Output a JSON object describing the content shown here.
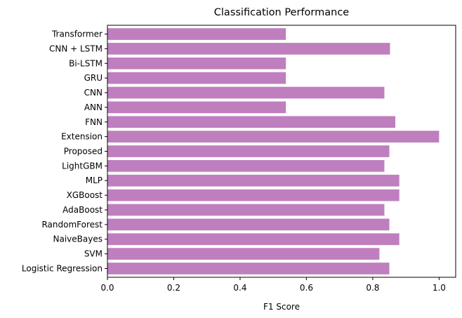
{
  "chart_data": {
    "type": "bar",
    "orientation": "horizontal",
    "title": "Classification Performance",
    "xlabel": "F1 Score",
    "ylabel": "",
    "xlim": [
      0,
      1.05
    ],
    "xticks": [
      0.0,
      0.2,
      0.4,
      0.6,
      0.8,
      1.0
    ],
    "xtick_labels": [
      "0.0",
      "0.2",
      "0.4",
      "0.6",
      "0.8",
      "1.0"
    ],
    "categories": [
      "Logistic Regression",
      "SVM",
      "NaiveBayes",
      "RandomForest",
      "AdaBoost",
      "XGBoost",
      "MLP",
      "LightGBM",
      "Proposed",
      "Extension",
      "FNN",
      "ANN",
      "CNN",
      "GRU",
      "Bi-LSTM",
      "CNN + LSTM",
      "Transformer"
    ],
    "values": [
      0.85,
      0.82,
      0.88,
      0.85,
      0.835,
      0.88,
      0.88,
      0.835,
      0.85,
      1.0,
      0.868,
      0.538,
      0.835,
      0.538,
      0.538,
      0.852,
      0.538
    ],
    "bar_color": "#bf7fbf",
    "grid": false,
    "legend": "none"
  }
}
